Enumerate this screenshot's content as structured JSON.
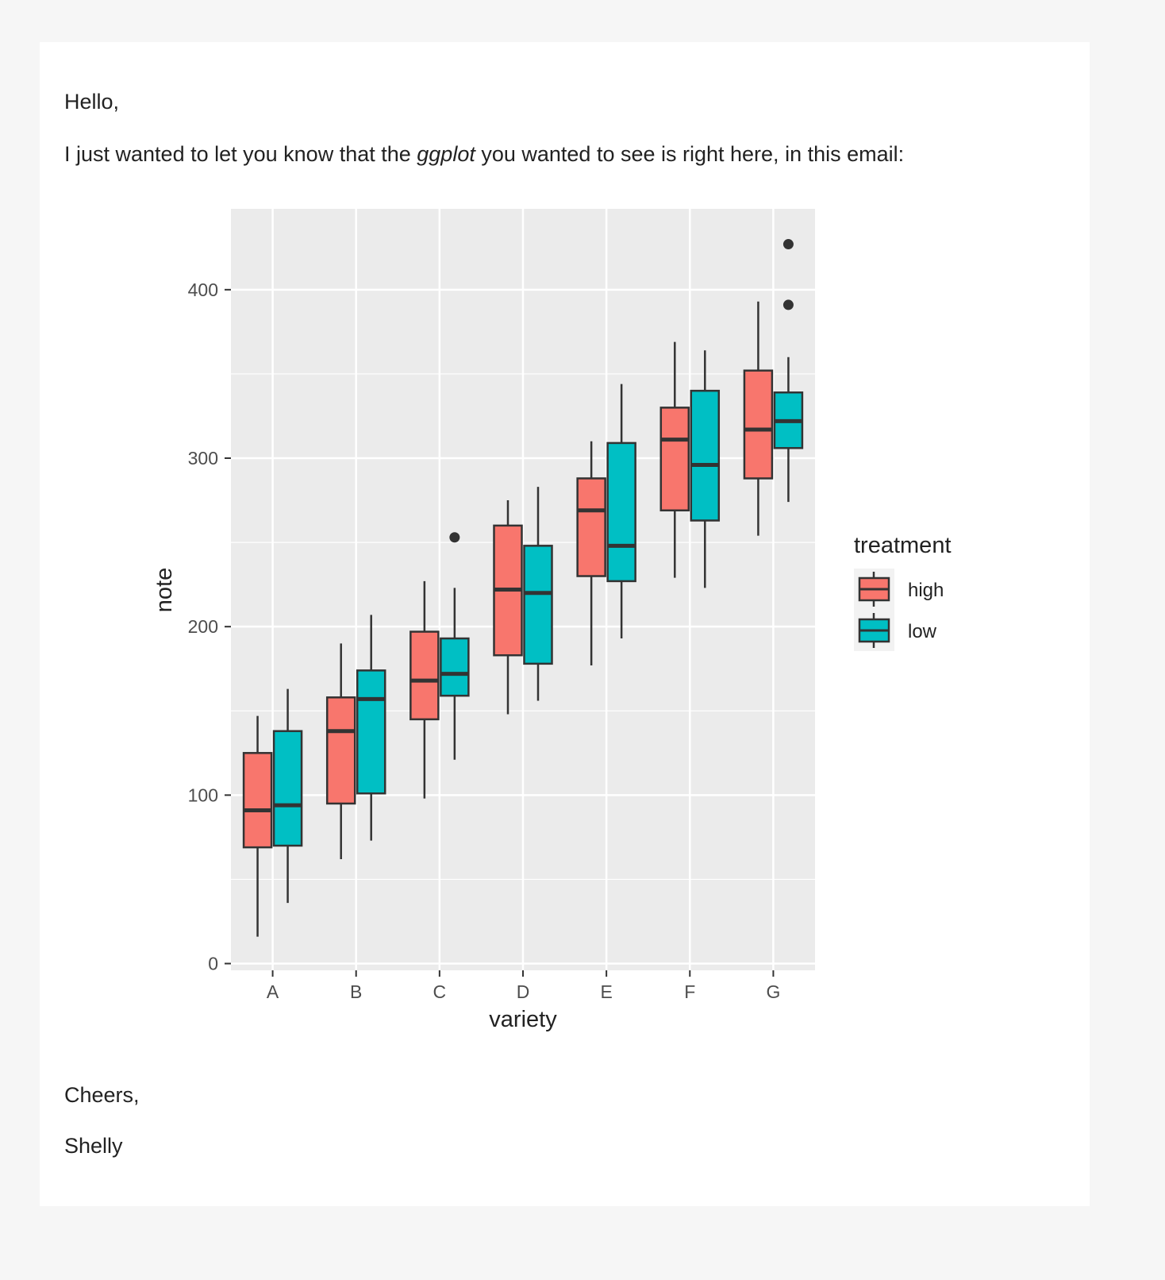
{
  "email": {
    "greeting": "Hello,",
    "body_before": "I just wanted to let you know that the ",
    "body_emphasis": "ggplot",
    "body_after": " you wanted to see is right here, in this email:",
    "closing": "Cheers,",
    "signature": "Shelly"
  },
  "chart_data": {
    "type": "boxplot",
    "xlabel": "variety",
    "ylabel": "note",
    "categories": [
      "A",
      "B",
      "C",
      "D",
      "E",
      "F",
      "G"
    ],
    "yticks": [
      0,
      100,
      200,
      300,
      400
    ],
    "ylim": [
      -4,
      448
    ],
    "grid": true,
    "legend": {
      "title": "treatment",
      "placement": "right"
    },
    "series": [
      {
        "name": "high",
        "color": "#F8766D",
        "boxes": [
          {
            "low": 16,
            "q1": 69,
            "median": 91,
            "q3": 125,
            "high": 147,
            "outliers": []
          },
          {
            "low": 62,
            "q1": 95,
            "median": 138,
            "q3": 158,
            "high": 190,
            "outliers": []
          },
          {
            "low": 98,
            "q1": 145,
            "median": 168,
            "q3": 197,
            "high": 227,
            "outliers": []
          },
          {
            "low": 148,
            "q1": 183,
            "median": 222,
            "q3": 260,
            "high": 275,
            "outliers": []
          },
          {
            "low": 177,
            "q1": 230,
            "median": 269,
            "q3": 288,
            "high": 310,
            "outliers": []
          },
          {
            "low": 229,
            "q1": 269,
            "median": 311,
            "q3": 330,
            "high": 369,
            "outliers": []
          },
          {
            "low": 254,
            "q1": 288,
            "median": 317,
            "q3": 352,
            "high": 393,
            "outliers": []
          }
        ]
      },
      {
        "name": "low",
        "color": "#00BFC4",
        "boxes": [
          {
            "low": 36,
            "q1": 70,
            "median": 94,
            "q3": 138,
            "high": 163,
            "outliers": []
          },
          {
            "low": 73,
            "q1": 101,
            "median": 157,
            "q3": 174,
            "high": 207,
            "outliers": []
          },
          {
            "low": 121,
            "q1": 159,
            "median": 172,
            "q3": 193,
            "high": 223,
            "outliers": [
              253
            ]
          },
          {
            "low": 156,
            "q1": 178,
            "median": 220,
            "q3": 248,
            "high": 283,
            "outliers": []
          },
          {
            "low": 193,
            "q1": 227,
            "median": 248,
            "q3": 309,
            "high": 344,
            "outliers": []
          },
          {
            "low": 223,
            "q1": 263,
            "median": 296,
            "q3": 340,
            "high": 364,
            "outliers": []
          },
          {
            "low": 274,
            "q1": 306,
            "median": 322,
            "q3": 339,
            "high": 360,
            "outliers": [
              391,
              427
            ]
          }
        ]
      }
    ]
  }
}
